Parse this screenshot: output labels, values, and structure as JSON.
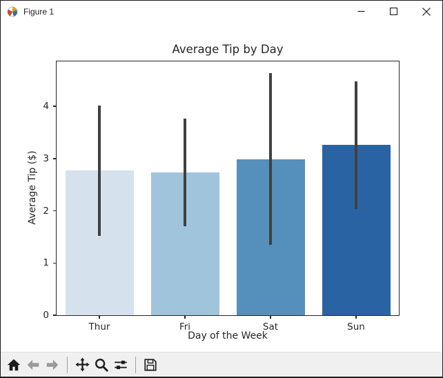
{
  "window": {
    "title": "Figure 1",
    "controls": [
      "minimize",
      "maximize",
      "close"
    ]
  },
  "toolbar": {
    "buttons": [
      "home",
      "back",
      "forward",
      "pan",
      "zoom-to-rect",
      "configure-subplots",
      "save"
    ]
  },
  "chart_data": {
    "type": "bar",
    "title": "Average Tip by Day",
    "xlabel": "Day of the Week",
    "ylabel": "Average Tip ($)",
    "categories": [
      "Thur",
      "Fri",
      "Sat",
      "Sun"
    ],
    "values": [
      2.77,
      2.73,
      2.99,
      3.26
    ],
    "error_low": [
      1.52,
      1.71,
      1.35,
      2.03
    ],
    "error_high": [
      4.01,
      3.76,
      4.63,
      4.48
    ],
    "bar_colors": [
      "#d5e2ee",
      "#a0c4dc",
      "#5590bd",
      "#2a63a3"
    ],
    "error_bar_color": "#404040",
    "axis_color": "#262626",
    "yticks": [
      0,
      1,
      2,
      3,
      4
    ],
    "ylim": [
      0,
      4.86
    ],
    "grid": false,
    "legend": null
  }
}
